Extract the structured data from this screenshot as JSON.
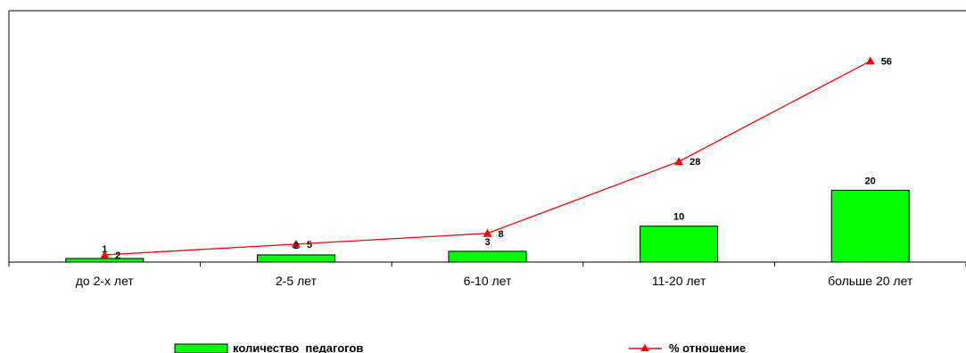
{
  "chart_data": {
    "type": "bar",
    "categories": [
      "до 2-х лет",
      "2-5 лет",
      "6-10 лет",
      "11-20 лет",
      "больше 20 лет"
    ],
    "series": [
      {
        "name": "количество  педагогов",
        "type": "bar",
        "values": [
          1,
          2,
          3,
          10,
          20
        ],
        "labels": [
          "1",
          "2",
          "3",
          "10",
          "20"
        ],
        "color": "#00ff00"
      },
      {
        "name": "% отношение",
        "type": "line",
        "values": [
          2,
          5,
          8,
          28,
          56
        ],
        "labels": [
          "2",
          "5",
          "8",
          "28",
          "56"
        ],
        "color": "#ff0000",
        "marker": "triangle"
      }
    ],
    "title": "",
    "xlabel": "",
    "ylabel": "",
    "ylim": [
      0,
      70
    ],
    "grid": false,
    "legend_position": "bottom"
  }
}
